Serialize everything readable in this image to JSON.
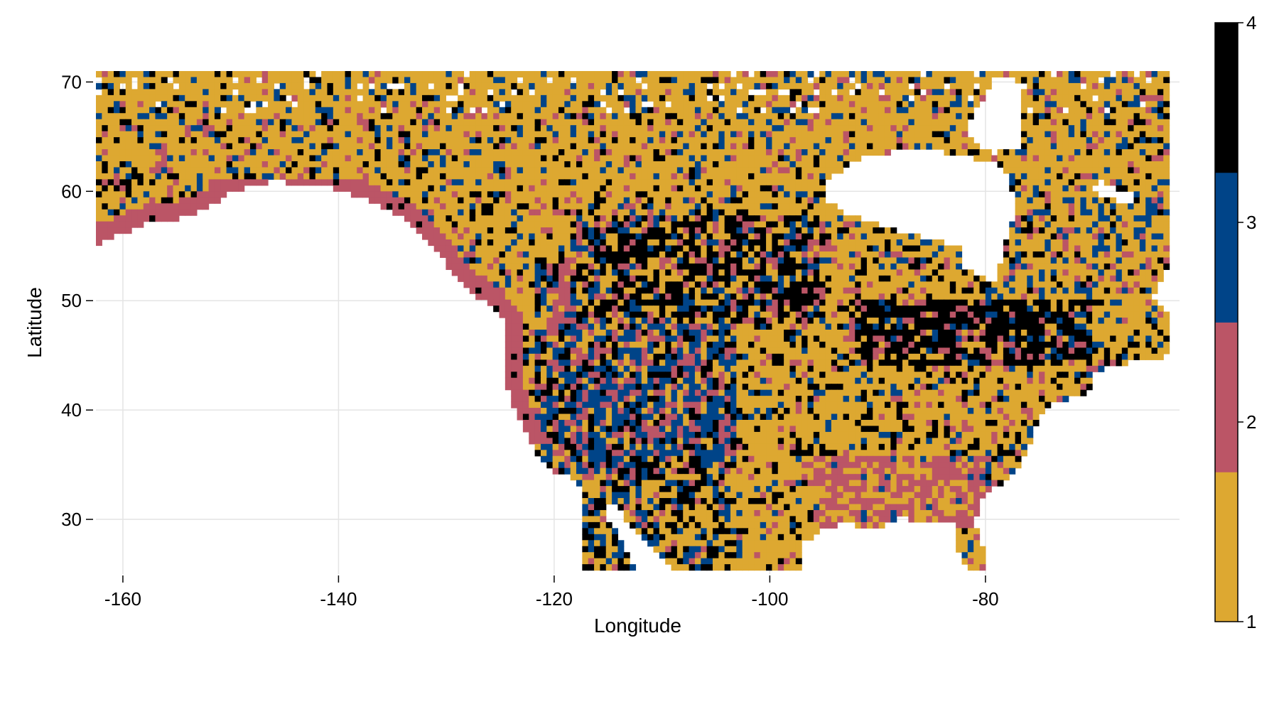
{
  "chart_data": {
    "type": "heatmap",
    "title": "",
    "xlabel": "Longitude",
    "ylabel": "Latitude",
    "xlim": [
      -162.5,
      -62
    ],
    "ylim": [
      25,
      71
    ],
    "xticks": [
      -160,
      -140,
      -120,
      -100,
      -80
    ],
    "yticks": [
      30,
      40,
      50,
      60,
      70
    ],
    "xtick_labels": [
      "-160",
      "-140",
      "-120",
      "-100",
      "-80"
    ],
    "ytick_labels": [
      "30",
      "40",
      "50",
      "60",
      "70"
    ],
    "grid": true,
    "colorbar": {
      "range": [
        1,
        4
      ],
      "ticks": [
        1,
        2,
        3,
        4
      ],
      "tick_labels": [
        "1",
        "2",
        "3",
        "4"
      ],
      "categories": [
        {
          "value": 1,
          "color": "#DDA831"
        },
        {
          "value": 2,
          "color": "#BB5566"
        },
        {
          "value": 3,
          "color": "#004488"
        },
        {
          "value": 4,
          "color": "#000000"
        }
      ]
    },
    "background_color": "#ffffff"
  }
}
